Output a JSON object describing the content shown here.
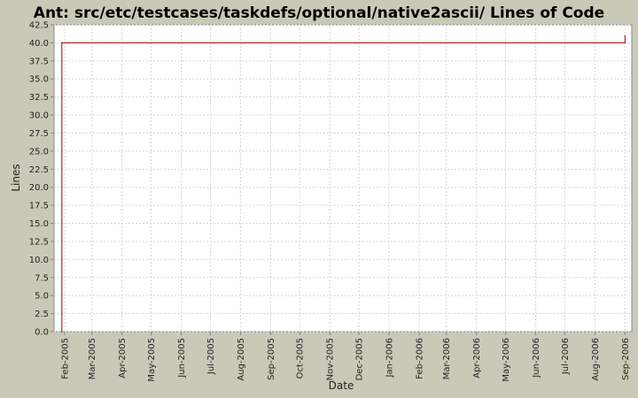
{
  "chart_data": {
    "type": "line",
    "title": "Ant: src/etc/testcases/taskdefs/optional/native2ascii/ Lines of Code",
    "xlabel": "Date",
    "ylabel": "Lines",
    "ylim": [
      0,
      42.5
    ],
    "y_ticks": [
      "0.0",
      "2.5",
      "5.0",
      "7.5",
      "10.0",
      "12.5",
      "15.0",
      "17.5",
      "20.0",
      "22.5",
      "25.0",
      "27.5",
      "30.0",
      "32.5",
      "35.0",
      "37.5",
      "40.0",
      "42.5"
    ],
    "x_start": "2005-01-21",
    "x_end": "2006-09-08",
    "x_ticks": [
      {
        "date": "2005-02-01",
        "label": "Feb-2005"
      },
      {
        "date": "2005-03-01",
        "label": "Mar-2005"
      },
      {
        "date": "2005-04-01",
        "label": "Apr-2005"
      },
      {
        "date": "2005-05-01",
        "label": "May-2005"
      },
      {
        "date": "2005-06-01",
        "label": "Jun-2005"
      },
      {
        "date": "2005-07-01",
        "label": "Jul-2005"
      },
      {
        "date": "2005-08-01",
        "label": "Aug-2005"
      },
      {
        "date": "2005-09-01",
        "label": "Sep-2005"
      },
      {
        "date": "2005-10-01",
        "label": "Oct-2005"
      },
      {
        "date": "2005-11-01",
        "label": "Nov-2005"
      },
      {
        "date": "2005-12-01",
        "label": "Dec-2005"
      },
      {
        "date": "2006-01-01",
        "label": "Jan-2006"
      },
      {
        "date": "2006-02-01",
        "label": "Feb-2006"
      },
      {
        "date": "2006-03-01",
        "label": "Mar-2006"
      },
      {
        "date": "2006-04-01",
        "label": "Apr-2006"
      },
      {
        "date": "2006-05-01",
        "label": "May-2006"
      },
      {
        "date": "2006-06-01",
        "label": "Jun-2006"
      },
      {
        "date": "2006-07-01",
        "label": "Jul-2006"
      },
      {
        "date": "2006-08-01",
        "label": "Aug-2006"
      },
      {
        "date": "2006-09-01",
        "label": "Sep-2006"
      }
    ],
    "series": [
      {
        "color": "#aa0000",
        "points": [
          {
            "x": "2005-01-29",
            "y": 0
          },
          {
            "x": "2005-01-29",
            "y": 40
          },
          {
            "x": "2006-09-01",
            "y": 40
          },
          {
            "x": "2006-09-01",
            "y": 41
          }
        ]
      }
    ],
    "grid": true,
    "colors": {
      "background": "#c9c9b7",
      "plot_background": "#ffffff",
      "grid": "#d4d4d4",
      "axis": "#888888"
    }
  }
}
